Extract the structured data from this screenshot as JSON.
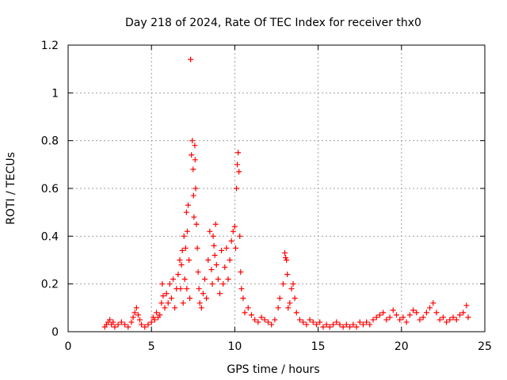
{
  "chart_data": {
    "type": "scatter",
    "title": "Day 218 of 2024, Rate Of TEC Index for receiver thx0",
    "xlabel": "GPS time / hours",
    "ylabel": "ROTI / TECUs",
    "xlim": [
      0,
      25
    ],
    "ylim": [
      0,
      1.2
    ],
    "x_ticks": [
      0,
      5,
      10,
      15,
      20,
      25
    ],
    "x_tick_labels": [
      "0",
      "5",
      "10",
      "15",
      "20",
      "25"
    ],
    "y_ticks": [
      0,
      0.2,
      0.4,
      0.6,
      0.8,
      1,
      1.2
    ],
    "y_tick_labels": [
      "0",
      "0.2",
      "0.4",
      "0.6",
      "0.8",
      "1",
      "1.2"
    ],
    "grid": "dotted",
    "marker": "+",
    "color": "#ff0000",
    "series": [
      {
        "name": "thx0",
        "points": [
          [
            2.2,
            0.02
          ],
          [
            2.3,
            0.03
          ],
          [
            2.4,
            0.04
          ],
          [
            2.5,
            0.05
          ],
          [
            2.6,
            0.03
          ],
          [
            2.7,
            0.04
          ],
          [
            2.8,
            0.02
          ],
          [
            3.0,
            0.03
          ],
          [
            3.2,
            0.04
          ],
          [
            3.4,
            0.03
          ],
          [
            3.6,
            0.02
          ],
          [
            3.8,
            0.04
          ],
          [
            3.9,
            0.06
          ],
          [
            4.0,
            0.08
          ],
          [
            4.1,
            0.1
          ],
          [
            4.2,
            0.07
          ],
          [
            4.3,
            0.05
          ],
          [
            4.4,
            0.03
          ],
          [
            4.6,
            0.02
          ],
          [
            4.8,
            0.03
          ],
          [
            5.0,
            0.04
          ],
          [
            5.1,
            0.06
          ],
          [
            5.2,
            0.05
          ],
          [
            5.3,
            0.08
          ],
          [
            5.4,
            0.06
          ],
          [
            5.5,
            0.07
          ],
          [
            5.6,
            0.12
          ],
          [
            5.65,
            0.2
          ],
          [
            5.7,
            0.15
          ],
          [
            5.8,
            0.1
          ],
          [
            5.9,
            0.16
          ],
          [
            6.0,
            0.12
          ],
          [
            6.1,
            0.2
          ],
          [
            6.2,
            0.14
          ],
          [
            6.3,
            0.22
          ],
          [
            6.4,
            0.1
          ],
          [
            6.5,
            0.18
          ],
          [
            6.6,
            0.24
          ],
          [
            6.7,
            0.3
          ],
          [
            6.75,
            0.18
          ],
          [
            6.8,
            0.28
          ],
          [
            6.85,
            0.34
          ],
          [
            6.9,
            0.12
          ],
          [
            6.95,
            0.4
          ],
          [
            7.0,
            0.22
          ],
          [
            7.05,
            0.35
          ],
          [
            7.1,
            0.5
          ],
          [
            7.12,
            0.18
          ],
          [
            7.15,
            0.42
          ],
          [
            7.2,
            0.53
          ],
          [
            7.25,
            0.3
          ],
          [
            7.3,
            0.14
          ],
          [
            7.35,
            1.14
          ],
          [
            7.4,
            0.74
          ],
          [
            7.45,
            0.8
          ],
          [
            7.5,
            0.68
          ],
          [
            7.52,
            0.57
          ],
          [
            7.55,
            0.48
          ],
          [
            7.6,
            0.78
          ],
          [
            7.62,
            0.72
          ],
          [
            7.65,
            0.6
          ],
          [
            7.7,
            0.45
          ],
          [
            7.75,
            0.35
          ],
          [
            7.8,
            0.25
          ],
          [
            7.85,
            0.18
          ],
          [
            7.9,
            0.12
          ],
          [
            8.0,
            0.1
          ],
          [
            8.1,
            0.16
          ],
          [
            8.2,
            0.22
          ],
          [
            8.3,
            0.14
          ],
          [
            8.4,
            0.3
          ],
          [
            8.5,
            0.42
          ],
          [
            8.6,
            0.26
          ],
          [
            8.65,
            0.2
          ],
          [
            8.7,
            0.4
          ],
          [
            8.75,
            0.36
          ],
          [
            8.8,
            0.32
          ],
          [
            8.85,
            0.45
          ],
          [
            8.9,
            0.28
          ],
          [
            9.0,
            0.22
          ],
          [
            9.1,
            0.16
          ],
          [
            9.2,
            0.34
          ],
          [
            9.3,
            0.2
          ],
          [
            9.4,
            0.27
          ],
          [
            9.5,
            0.35
          ],
          [
            9.6,
            0.22
          ],
          [
            9.7,
            0.3
          ],
          [
            9.8,
            0.38
          ],
          [
            9.9,
            0.42
          ],
          [
            10.0,
            0.44
          ],
          [
            10.05,
            0.35
          ],
          [
            10.1,
            0.6
          ],
          [
            10.15,
            0.7
          ],
          [
            10.2,
            0.75
          ],
          [
            10.25,
            0.67
          ],
          [
            10.3,
            0.4
          ],
          [
            10.35,
            0.25
          ],
          [
            10.4,
            0.18
          ],
          [
            10.5,
            0.14
          ],
          [
            10.6,
            0.08
          ],
          [
            10.8,
            0.1
          ],
          [
            11.0,
            0.07
          ],
          [
            11.2,
            0.05
          ],
          [
            11.4,
            0.04
          ],
          [
            11.6,
            0.06
          ],
          [
            11.8,
            0.05
          ],
          [
            12.0,
            0.04
          ],
          [
            12.2,
            0.03
          ],
          [
            12.4,
            0.05
          ],
          [
            12.6,
            0.1
          ],
          [
            12.7,
            0.14
          ],
          [
            12.9,
            0.2
          ],
          [
            13.0,
            0.33
          ],
          [
            13.05,
            0.31
          ],
          [
            13.1,
            0.3
          ],
          [
            13.15,
            0.24
          ],
          [
            13.2,
            0.1
          ],
          [
            13.3,
            0.12
          ],
          [
            13.4,
            0.18
          ],
          [
            13.5,
            0.2
          ],
          [
            13.6,
            0.14
          ],
          [
            13.7,
            0.08
          ],
          [
            13.9,
            0.05
          ],
          [
            14.1,
            0.04
          ],
          [
            14.3,
            0.03
          ],
          [
            14.5,
            0.05
          ],
          [
            14.7,
            0.04
          ],
          [
            14.9,
            0.03
          ],
          [
            15.1,
            0.04
          ],
          [
            15.3,
            0.02
          ],
          [
            15.5,
            0.03
          ],
          [
            15.7,
            0.02
          ],
          [
            15.9,
            0.03
          ],
          [
            16.1,
            0.04
          ],
          [
            16.3,
            0.03
          ],
          [
            16.5,
            0.02
          ],
          [
            16.7,
            0.03
          ],
          [
            16.9,
            0.02
          ],
          [
            17.1,
            0.03
          ],
          [
            17.3,
            0.02
          ],
          [
            17.5,
            0.04
          ],
          [
            17.7,
            0.03
          ],
          [
            17.9,
            0.04
          ],
          [
            18.1,
            0.03
          ],
          [
            18.3,
            0.05
          ],
          [
            18.5,
            0.06
          ],
          [
            18.7,
            0.07
          ],
          [
            18.9,
            0.08
          ],
          [
            19.1,
            0.05
          ],
          [
            19.3,
            0.06
          ],
          [
            19.5,
            0.09
          ],
          [
            19.7,
            0.07
          ],
          [
            19.9,
            0.05
          ],
          [
            20.1,
            0.06
          ],
          [
            20.3,
            0.04
          ],
          [
            20.5,
            0.07
          ],
          [
            20.7,
            0.09
          ],
          [
            20.9,
            0.08
          ],
          [
            21.1,
            0.05
          ],
          [
            21.3,
            0.06
          ],
          [
            21.5,
            0.08
          ],
          [
            21.7,
            0.1
          ],
          [
            21.9,
            0.12
          ],
          [
            22.1,
            0.08
          ],
          [
            22.3,
            0.05
          ],
          [
            22.5,
            0.06
          ],
          [
            22.7,
            0.04
          ],
          [
            22.9,
            0.05
          ],
          [
            23.1,
            0.06
          ],
          [
            23.3,
            0.05
          ],
          [
            23.5,
            0.07
          ],
          [
            23.7,
            0.08
          ],
          [
            23.9,
            0.11
          ],
          [
            24.0,
            0.06
          ]
        ]
      }
    ]
  }
}
